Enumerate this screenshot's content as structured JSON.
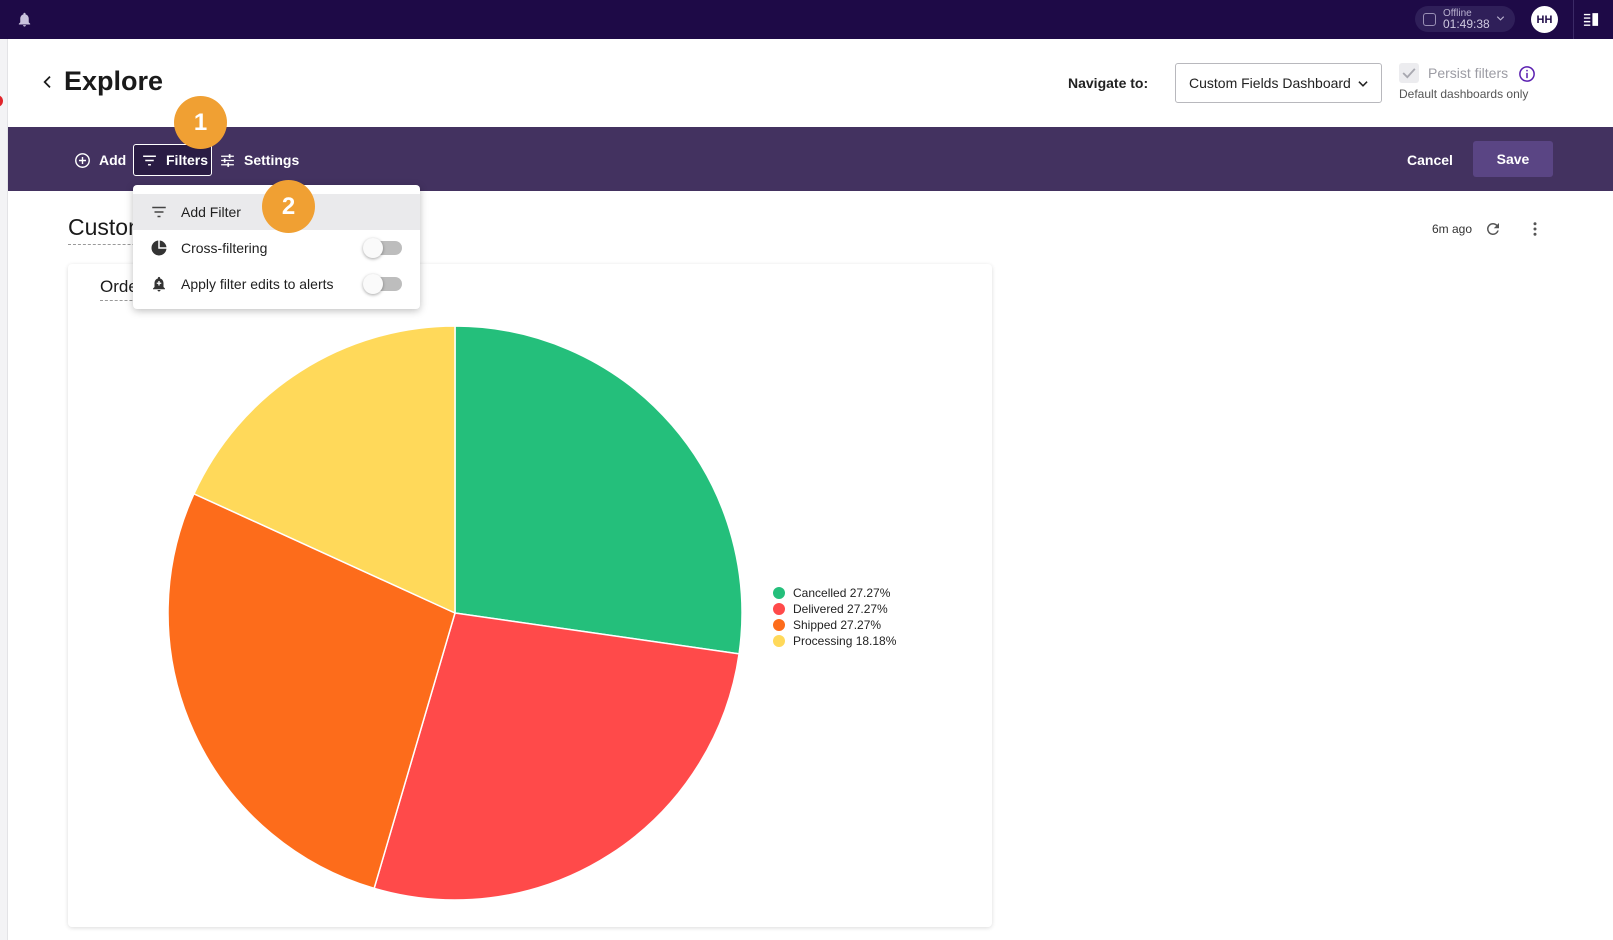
{
  "topbar": {
    "status_label": "Offline",
    "status_time": "01:49:38",
    "user_initials": "HH"
  },
  "header": {
    "title": "Explore",
    "navigate_label": "Navigate to:",
    "navigate_value": "Custom Fields Dashboard",
    "persist_label": "Persist filters",
    "persist_sub": "Default dashboards only"
  },
  "toolbar": {
    "add_label": "Add",
    "filters_label": "Filters",
    "settings_label": "Settings",
    "cancel_label": "Cancel",
    "save_label": "Save"
  },
  "markers": [
    "1",
    "2"
  ],
  "filters_menu": {
    "items": [
      {
        "label": "Add Filter",
        "icon": "filter-icon"
      },
      {
        "label": "Cross-filtering",
        "icon": "pie-icon",
        "toggle": false
      },
      {
        "label": "Apply filter edits to alerts",
        "icon": "alert-bell-icon",
        "toggle": false
      }
    ]
  },
  "dashboard": {
    "title": "Custom Fields Dashboard",
    "updated": "6m ago"
  },
  "tile": {
    "title": "Orders"
  },
  "chart_data": {
    "type": "pie",
    "categories": [
      "Cancelled",
      "Delivered",
      "Shipped",
      "Processing"
    ],
    "values": [
      27.27,
      27.27,
      27.27,
      18.18
    ],
    "legend_labels": [
      "Cancelled 27.27%",
      "Delivered 27.27%",
      "Shipped 27.27%",
      "Processing 18.18%"
    ],
    "colors": [
      "#24bf7b",
      "#ff4a4a",
      "#fd6c1b",
      "#ffd95a"
    ],
    "legend": "right"
  }
}
